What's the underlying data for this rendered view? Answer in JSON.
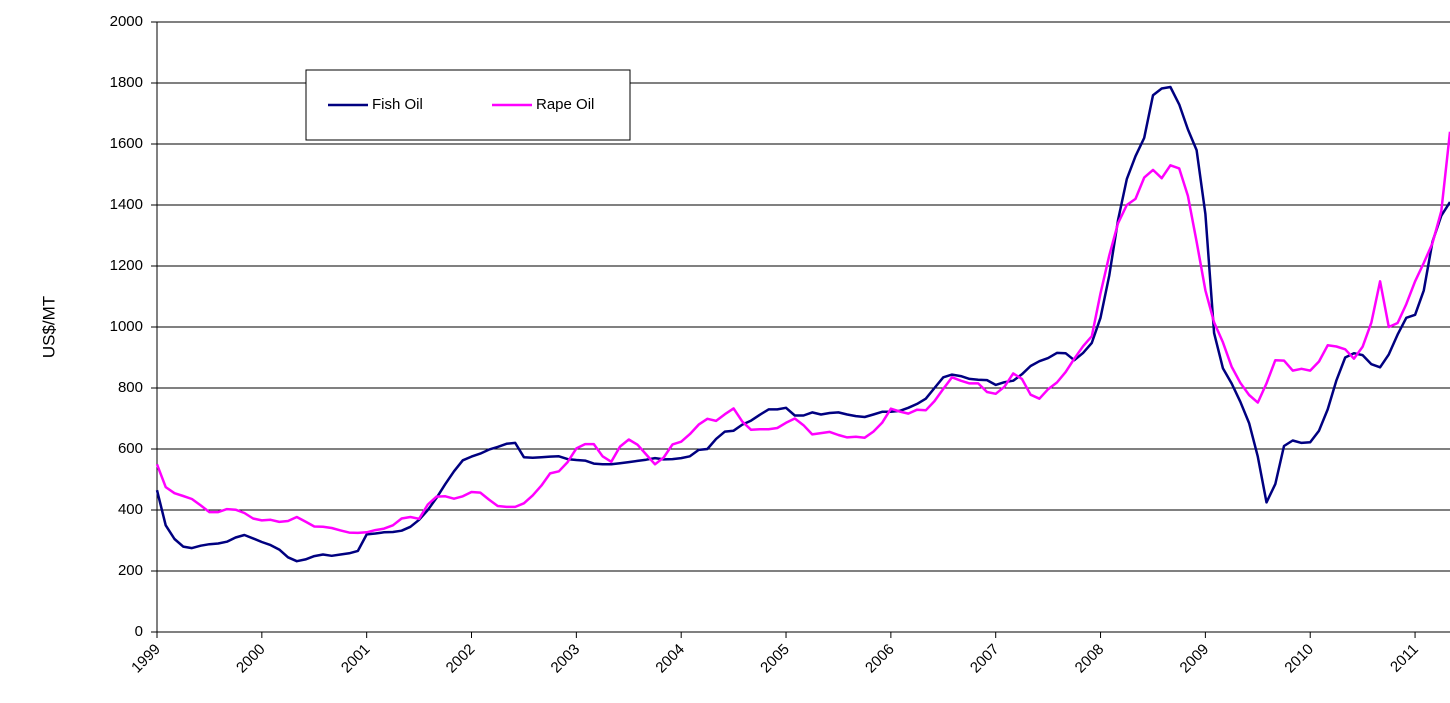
{
  "chart_data": {
    "type": "line",
    "y_label": "US$/MT",
    "categories": [
      "1999",
      null,
      null,
      null,
      null,
      null,
      null,
      null,
      null,
      null,
      null,
      null,
      "2000",
      null,
      null,
      null,
      null,
      null,
      null,
      null,
      null,
      null,
      null,
      null,
      "2001",
      null,
      null,
      null,
      null,
      null,
      null,
      null,
      null,
      null,
      null,
      null,
      "2002",
      null,
      null,
      null,
      null,
      null,
      null,
      null,
      null,
      null,
      null,
      null,
      "2003",
      null,
      null,
      null,
      null,
      null,
      null,
      null,
      null,
      null,
      null,
      null,
      "2004",
      null,
      null,
      null,
      null,
      null,
      null,
      null,
      null,
      null,
      null,
      null,
      "2005",
      null,
      null,
      null,
      null,
      null,
      null,
      null,
      null,
      null,
      null,
      null,
      "2006",
      null,
      null,
      null,
      null,
      null,
      null,
      null,
      null,
      null,
      null,
      null,
      "2007",
      null,
      null,
      null,
      null,
      null,
      null,
      null,
      null,
      null,
      null,
      null,
      "2008",
      null,
      null,
      null,
      null,
      null,
      null,
      null,
      null,
      null,
      null,
      null,
      "2009",
      null,
      null,
      null,
      null,
      null,
      null,
      null,
      null,
      null,
      null,
      null,
      "2010",
      null,
      null,
      null,
      null,
      null,
      null,
      null,
      null,
      null,
      null,
      null,
      "2011",
      null,
      null,
      null,
      null
    ],
    "series": [
      {
        "name": "Fish Oil",
        "color": "#000080",
        "values": [
          465,
          350,
          305,
          280,
          275,
          283,
          288,
          290,
          296,
          310,
          318,
          307,
          295,
          285,
          270,
          245,
          232,
          238,
          249,
          254,
          250,
          254,
          258,
          266,
          320,
          323,
          327,
          328,
          332,
          345,
          368,
          400,
          440,
          485,
          527,
          563,
          575,
          585,
          598,
          607,
          617,
          620,
          573,
          571,
          573,
          575,
          576,
          567,
          564,
          562,
          552,
          550,
          550,
          553,
          557,
          561,
          565,
          570,
          566,
          567,
          570,
          576,
          597,
          600,
          633,
          657,
          660,
          680,
          693,
          712,
          730,
          730,
          735,
          710,
          710,
          720,
          713,
          718,
          720,
          713,
          708,
          705,
          713,
          722,
          722,
          725,
          735,
          748,
          765,
          800,
          835,
          844,
          839,
          830,
          827,
          826,
          810,
          819,
          824,
          845,
          872,
          888,
          898,
          915,
          914,
          891,
          915,
          948,
          1030,
          1170,
          1350,
          1485,
          1560,
          1620,
          1760,
          1782,
          1787,
          1730,
          1648,
          1580,
          1370,
          980,
          865,
          815,
          755,
          685,
          575,
          425,
          485,
          610,
          628,
          620,
          622,
          660,
          730,
          825,
          900,
          914,
          908,
          878,
          868,
          910,
          975,
          1030,
          1040,
          1120,
          1280,
          1365,
          1410
        ]
      },
      {
        "name": "Rape Oil",
        "color": "#ff00ff",
        "values": [
          550,
          475,
          455,
          446,
          436,
          415,
          393,
          393,
          403,
          401,
          390,
          372,
          366,
          368,
          361,
          364,
          377,
          362,
          346,
          345,
          341,
          333,
          326,
          325,
          327,
          334,
          339,
          350,
          372,
          377,
          371,
          418,
          444,
          445,
          437,
          445,
          459,
          457,
          434,
          413,
          410,
          410,
          422,
          448,
          480,
          520,
          527,
          557,
          602,
          616,
          616,
          576,
          558,
          608,
          631,
          614,
          582,
          550,
          572,
          615,
          624,
          649,
          680,
          699,
          692,
          714,
          733,
          690,
          663,
          665,
          665,
          669,
          686,
          700,
          678,
          648,
          652,
          656,
          646,
          638,
          640,
          637,
          657,
          686,
          732,
          723,
          716,
          729,
          727,
          757,
          797,
          835,
          824,
          815,
          815,
          787,
          781,
          804,
          848,
          830,
          778,
          765,
          796,
          818,
          852,
          896,
          937,
          970,
          1110,
          1235,
          1340,
          1400,
          1420,
          1490,
          1515,
          1488,
          1530,
          1520,
          1430,
          1280,
          1120,
          1015,
          950,
          870,
          817,
          777,
          752,
          815,
          891,
          890,
          857,
          863,
          857,
          887,
          940,
          936,
          927,
          896,
          935,
          1015,
          1150,
          1000,
          1013,
          1075,
          1150,
          1210,
          1275,
          1380,
          1640
        ]
      }
    ],
    "ylim": [
      0,
      2000
    ],
    "yticks": [
      0,
      200,
      400,
      600,
      800,
      1000,
      1200,
      1400,
      1600,
      1800,
      2000
    ],
    "grid": true,
    "legend": "upper left"
  }
}
